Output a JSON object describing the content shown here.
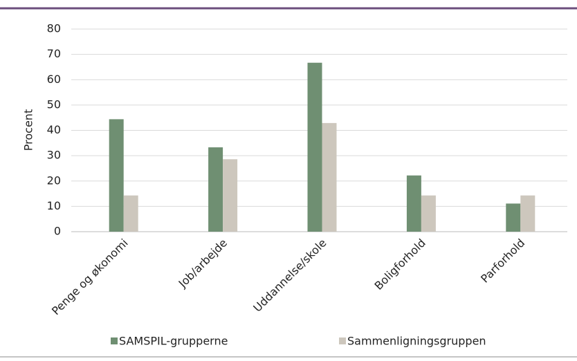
{
  "chart_data": {
    "type": "bar",
    "y_label": "Procent",
    "categories": [
      "Penge og økonomi",
      "Job/arbejde",
      "Uddannelse/skole",
      "Boligforhold",
      "Parforhold"
    ],
    "series": [
      {
        "name": "SAMSPIL-grupperne",
        "color": "#6f8f72",
        "values": [
          44.4,
          33.3,
          66.7,
          22.2,
          11.1
        ]
      },
      {
        "name": "Sammenligningsgruppen",
        "color": "#cdc7bd",
        "values": [
          14.3,
          28.6,
          42.9,
          14.3,
          14.3
        ]
      }
    ],
    "ylim": [
      0,
      80
    ],
    "yticks": [
      0,
      10,
      20,
      30,
      40,
      50,
      60,
      70,
      80
    ],
    "grid": true,
    "legend": "bottom"
  }
}
